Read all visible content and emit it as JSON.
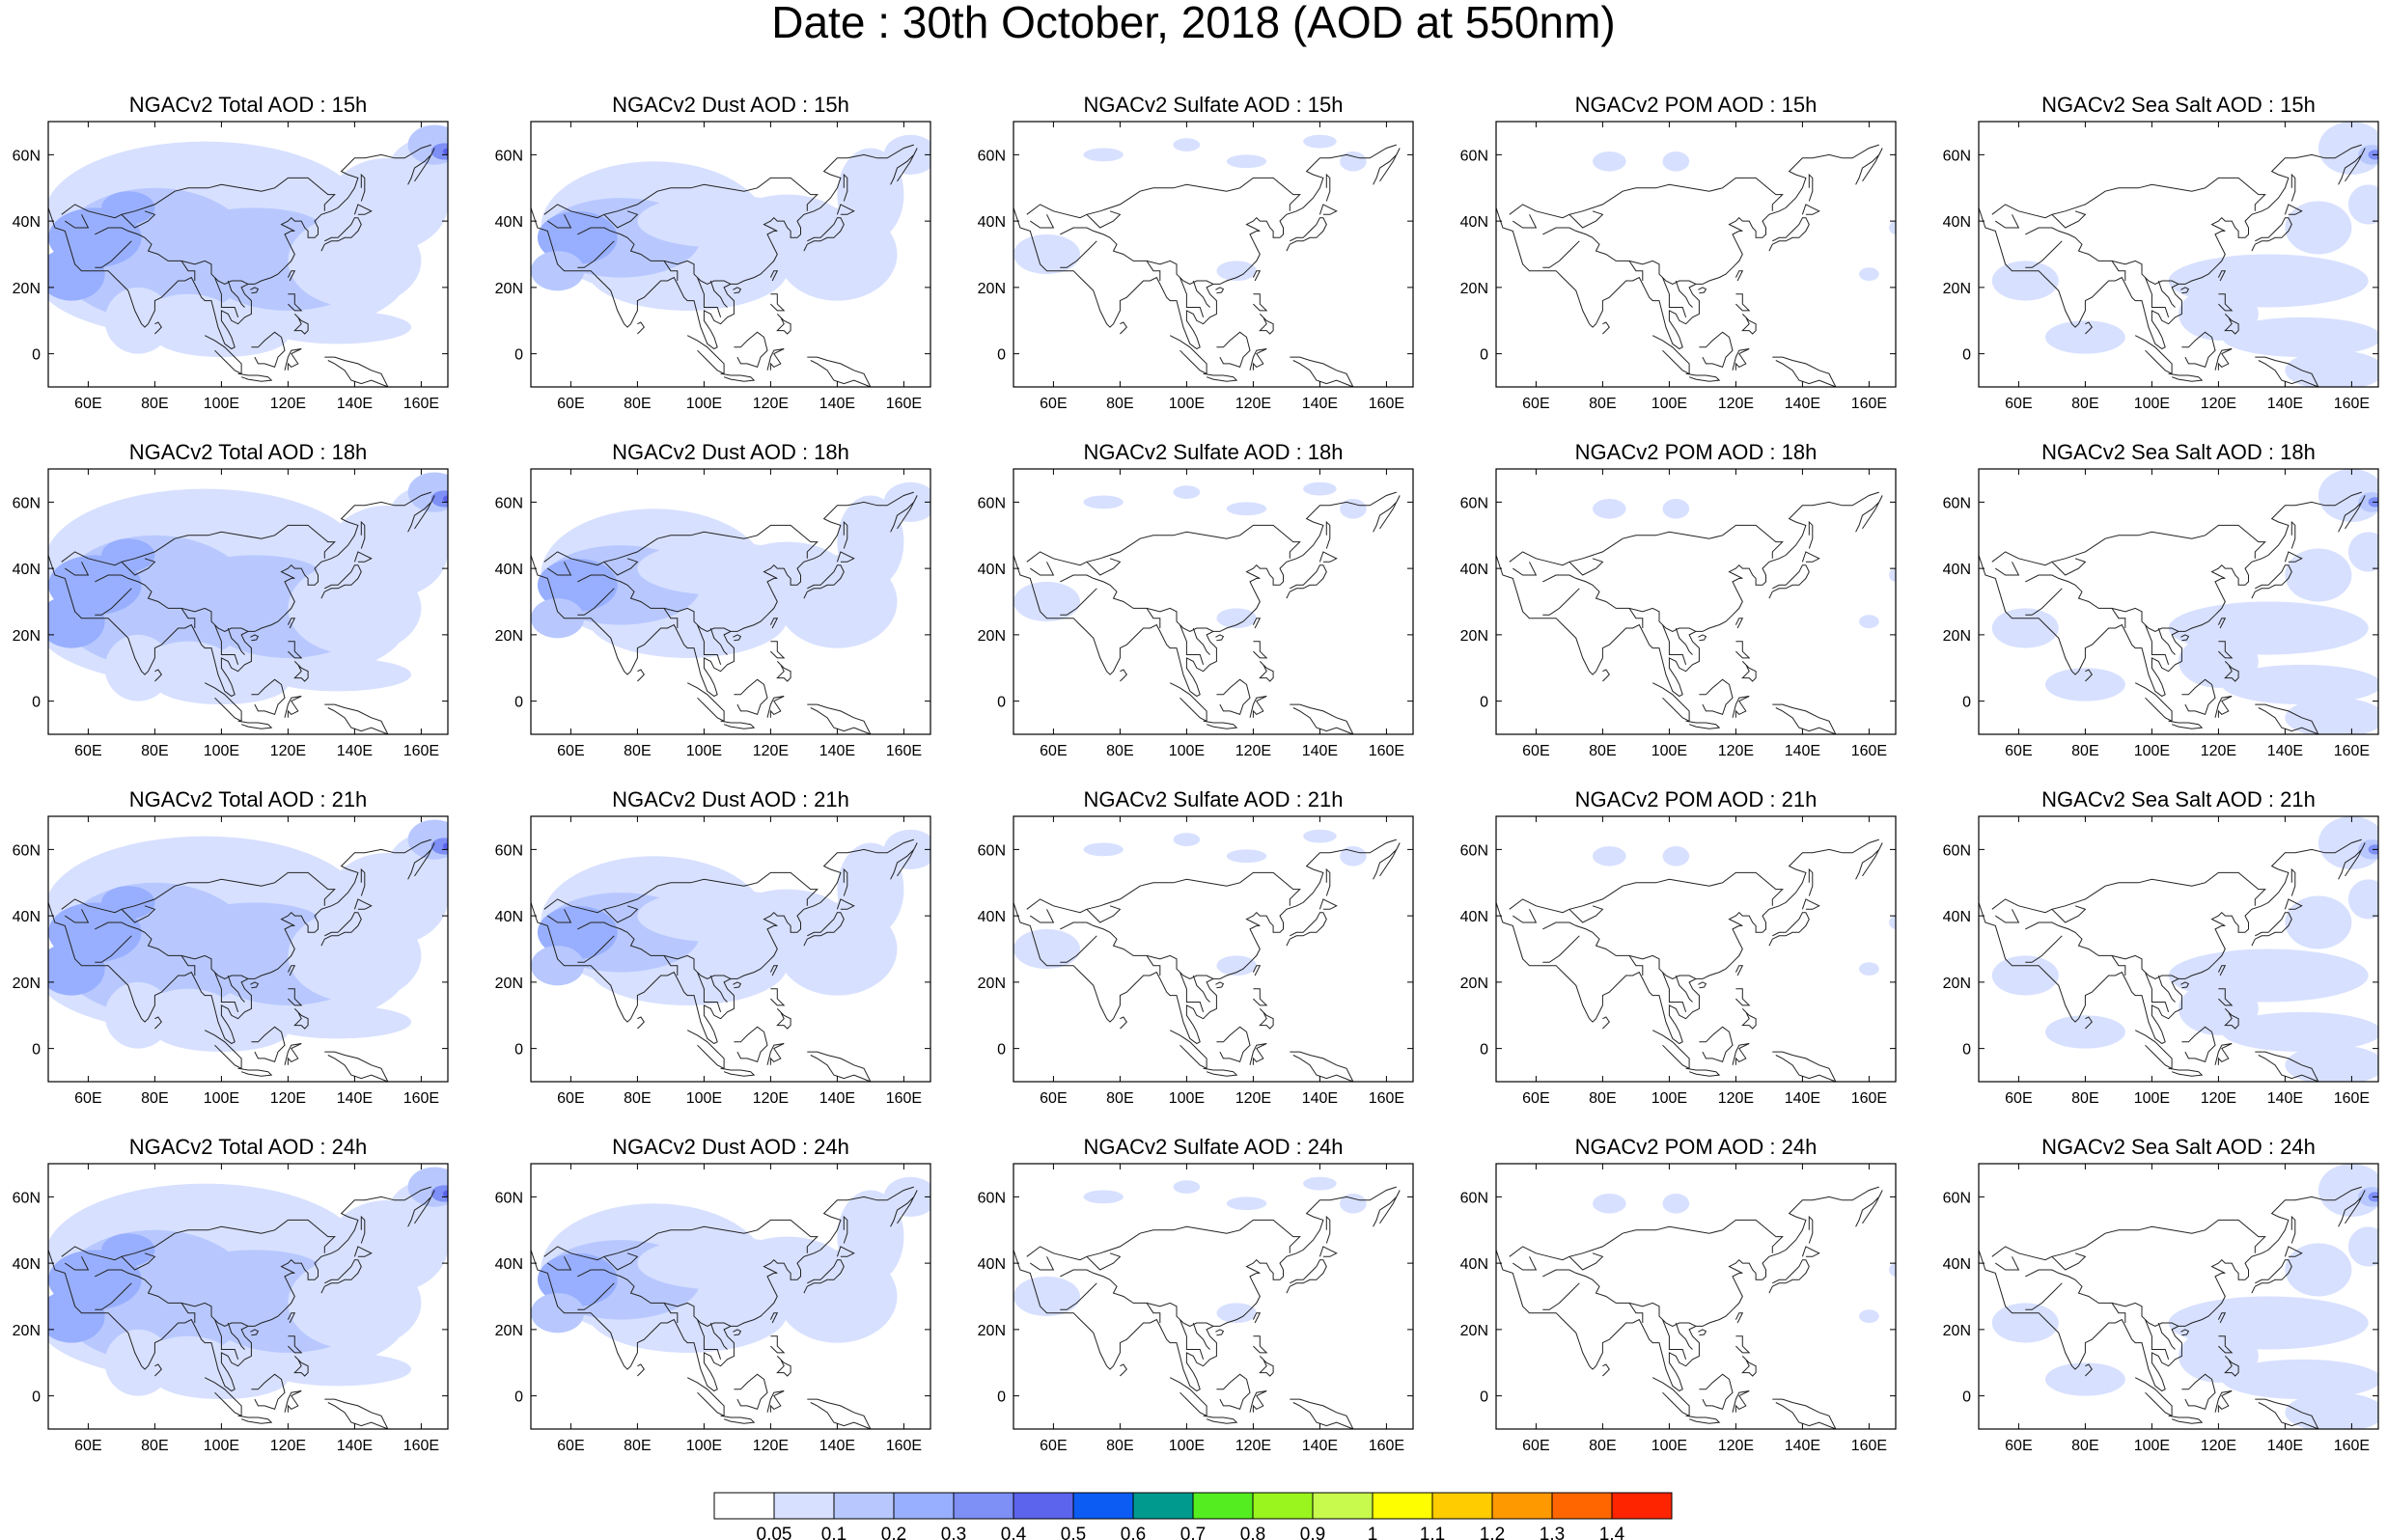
{
  "figure": {
    "title": "Date : 30th October, 2018 (AOD at 550nm)"
  },
  "chart_data": {
    "type": "heatmap",
    "description": "4 x 5 grid of AOD maps over Asia",
    "rows": [
      "15h",
      "18h",
      "21h",
      "24h"
    ],
    "columns": [
      "Total",
      "Dust",
      "Sulfate",
      "POM",
      "Sea Salt"
    ],
    "panel_titles": [
      [
        "NGACv2 Total AOD : 15h",
        "NGACv2 Dust AOD : 15h",
        "NGACv2 Sulfate AOD : 15h",
        "NGACv2 POM AOD : 15h",
        "NGACv2 Sea Salt AOD : 15h"
      ],
      [
        "NGACv2 Total AOD : 18h",
        "NGACv2 Dust AOD : 18h",
        "NGACv2 Sulfate AOD : 18h",
        "NGACv2 POM AOD : 18h",
        "NGACv2 Sea Salt AOD : 18h"
      ],
      [
        "NGACv2 Total AOD : 21h",
        "NGACv2 Dust AOD : 21h",
        "NGACv2 Sulfate AOD : 21h",
        "NGACv2 POM AOD : 21h",
        "NGACv2 Sea Salt AOD : 21h"
      ],
      [
        "NGACv2 Total AOD : 24h",
        "NGACv2 Dust AOD : 24h",
        "NGACv2 Sulfate AOD : 24h",
        "NGACv2 POM AOD : 24h",
        "NGACv2 Sea Salt  AOD : 24h"
      ]
    ],
    "x_ticks": [
      "60E",
      "80E",
      "100E",
      "120E",
      "140E",
      "160E"
    ],
    "x_tick_values": [
      60,
      80,
      100,
      120,
      140,
      160
    ],
    "y_ticks": [
      "60N",
      "40N",
      "20N",
      "0"
    ],
    "y_tick_values": [
      60,
      40,
      20,
      0
    ],
    "xlim": [
      48,
      168
    ],
    "ylim": [
      -10,
      70
    ],
    "colorbar": {
      "labels": [
        "0.05",
        "0.1",
        "0.2",
        "0.3",
        "0.4",
        "0.5",
        "0.6",
        "0.7",
        "0.8",
        "0.9",
        "1",
        "1.1",
        "1.2",
        "1.3",
        "1.4"
      ],
      "colors": [
        "#ffffff",
        "#d7e0ff",
        "#b8c8ff",
        "#98afff",
        "#7e8ff6",
        "#5c63ec",
        "#0c5cf3",
        "#009a8f",
        "#54ed20",
        "#99f51d",
        "#c8fa4d",
        "#fefe00",
        "#ffcc00",
        "#ff9900",
        "#ff6600",
        "#ff2400"
      ]
    }
  }
}
